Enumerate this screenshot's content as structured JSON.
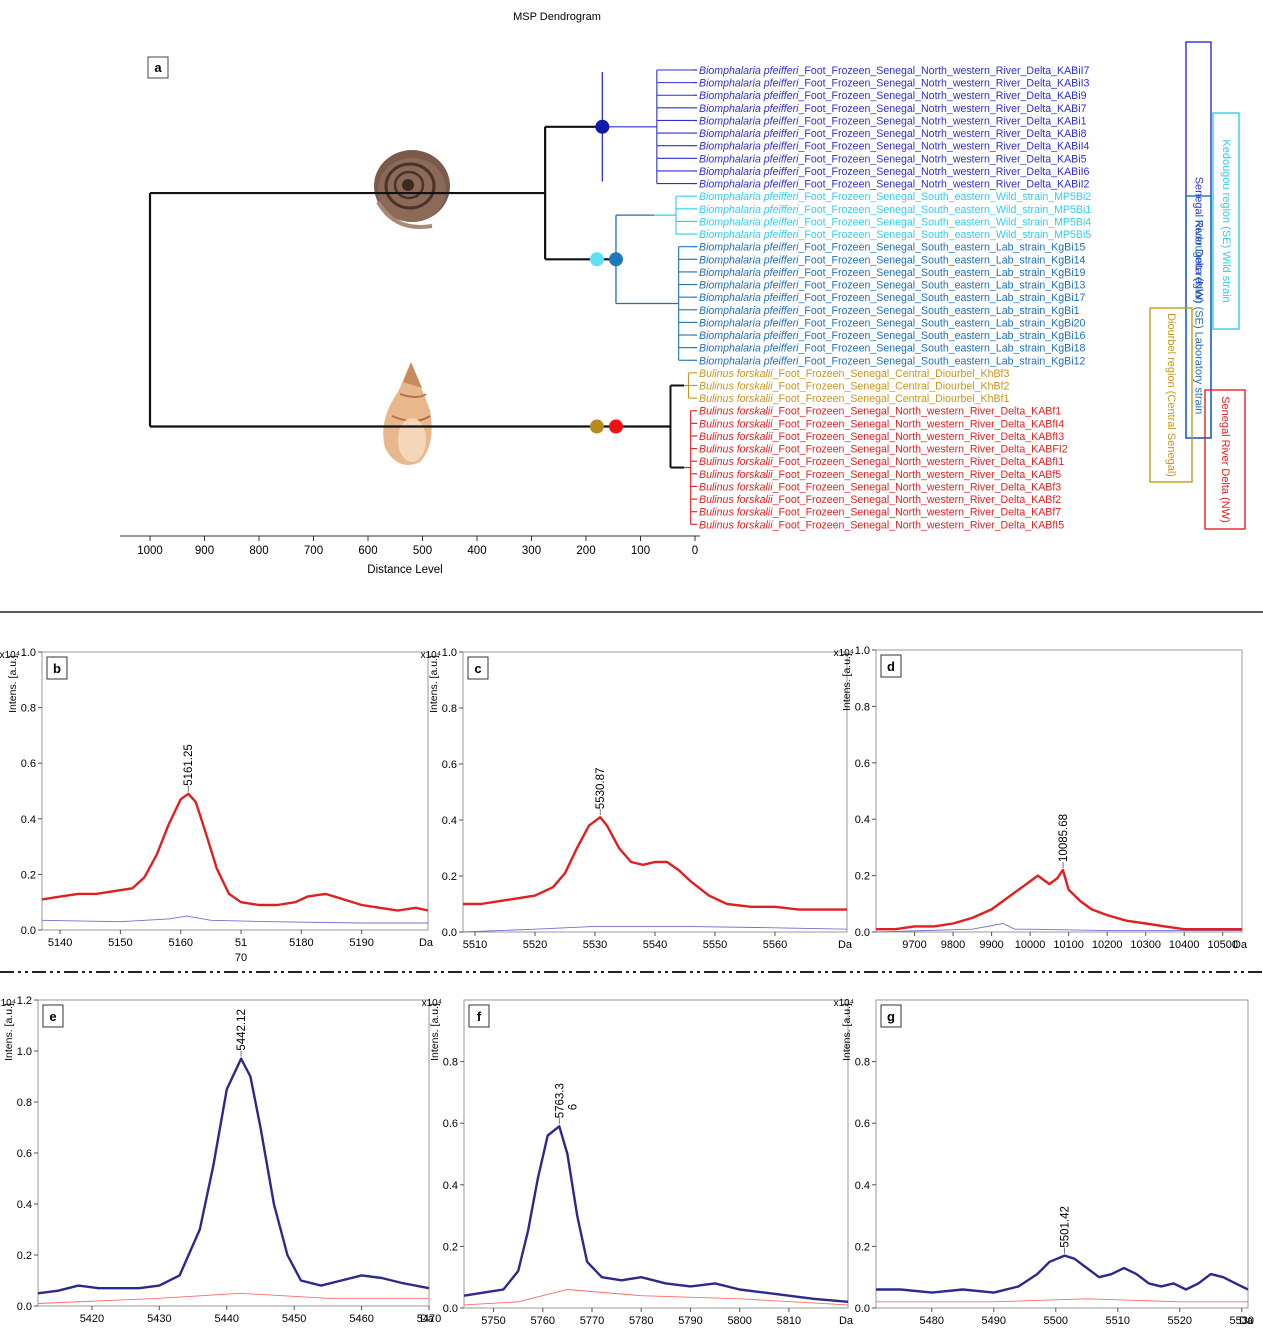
{
  "figure": {
    "colors": {
      "snail_a": "#2f2fd0",
      "snail_b_wild": "#33ccee",
      "snail_b_lab": "#1f6fb8",
      "bulinus_central": "#c8961e",
      "bulinus_nw": "#e32222",
      "node_a": "#101ca8",
      "node_wild": "#5fe0f5",
      "node_lab": "#1f78b8",
      "node_central": "#b88a1c",
      "node_nw": "#ee1111",
      "trace_red": "#e02020",
      "trace_blue": "#2b2a8c",
      "thin_blue": "#7070d0",
      "thin_red": "#ff6a6a"
    }
  },
  "chart_data": [
    {
      "type": "dendrogram",
      "title": "MSP Dendrogram",
      "panel_label": "a",
      "xlabel": "Distance Level",
      "xlim": [
        1000,
        0
      ],
      "ticks": [
        1000,
        900,
        800,
        700,
        600,
        500,
        400,
        300,
        200,
        100,
        0
      ],
      "leaves": [
        {
          "genus": "Biomphalaria pfeifferi",
          "rest": "_Foot_Frozeen_Senegal_North_western_River_Delta_KABiI7",
          "group": "snail_a"
        },
        {
          "genus": "Biomphalaria pfeifferi",
          "rest": "_Foot_Frozeen_Senegal_Notrh_western_River_Delta_KABiI3",
          "group": "snail_a"
        },
        {
          "genus": "Biomphalaria pfeifferi",
          "rest": "_Foot_Frozeen_Senegal_Notrh_western_River_Delta_KABi9",
          "group": "snail_a"
        },
        {
          "genus": "Biomphalaria pfeifferi",
          "rest": "_Foot_Frozeen_Senegal_Notrh_western_River_Delta_KABi7",
          "group": "snail_a"
        },
        {
          "genus": "Biomphalaria pfeifferi",
          "rest": "_Foot_Frozeen_Senegal_Notrh_western_River_Delta_KABi1",
          "group": "snail_a"
        },
        {
          "genus": "Biomphalaria pfeifferi",
          "rest": "_Foot_Frozeen_Senegal_Notrh_western_River_Delta_KABi8",
          "group": "snail_a"
        },
        {
          "genus": "Biomphalaria pfeifferi",
          "rest": "_Foot_Frozeen_Senegal_Notrh_western_River_Delta_KABiI4",
          "group": "snail_a"
        },
        {
          "genus": "Biomphalaria pfeifferi",
          "rest": "_Foot_Frozeen_Senegal_Notrh_western_River_Delta_KABi5",
          "group": "snail_a"
        },
        {
          "genus": "Biomphalaria pfeifferi",
          "rest": "_Foot_Frozeen_Senegal_Notrh_western_River_Delta_KABiI6",
          "group": "snail_a"
        },
        {
          "genus": "Biomphalaria pfeifferi",
          "rest": "_Foot_Frozeen_Senegal_Notrh_western_River_Delta_KABiI2",
          "group": "snail_a"
        },
        {
          "genus": "Biomphalaria pfeifferi",
          "rest": "_Foot_Frozeen_Senegal_South_eastern_Wild_strain_MP5Bi2",
          "group": "snail_b_wild"
        },
        {
          "genus": "Biomphalaria pfeifferi",
          "rest": "_Foot_Frozeen_Senegal_South_eastern_Wild_strain_MP5Bi1",
          "group": "snail_b_wild"
        },
        {
          "genus": "Biomphalaria pfeifferi",
          "rest": "_Foot_Frozeen_Senegal_South_eastern_Wild_strain_MP5Bi4",
          "group": "snail_b_wild"
        },
        {
          "genus": "Biomphalaria pfeifferi",
          "rest": "_Foot_Frozeen_Senegal_South_eastern_Wild_strain_MP5Bi5",
          "group": "snail_b_wild"
        },
        {
          "genus": "Biomphalaria pfeifferi",
          "rest": "_Foot_Frozeen_Senegal_South_eastern_Lab_strain_KgBi15",
          "group": "snail_b_lab"
        },
        {
          "genus": "Biomphalaria pfeifferi",
          "rest": "_Foot_Frozeen_Senegal_South_eastern_Lab_strain_KgBi14",
          "group": "snail_b_lab"
        },
        {
          "genus": "Biomphalaria pfeifferi",
          "rest": "_Foot_Frozeen_Senegal_South_eastern_Lab_strain_KgBi19",
          "group": "snail_b_lab"
        },
        {
          "genus": "Biomphalaria pfeifferi",
          "rest": "_Foot_Frozeen_Senegal_South_eastern_Lab_strain_KgBi13",
          "group": "snail_b_lab"
        },
        {
          "genus": "Biomphalaria pfeifferi",
          "rest": "_Foot_Frozeen_Senegal_South_eastern_Lab_strain_KgBi17",
          "group": "snail_b_lab"
        },
        {
          "genus": "Biomphalaria pfeifferi",
          "rest": "_Foot_Frozeen_Senegal_South_eastern_Lab_strain_KgBi1",
          "group": "snail_b_lab"
        },
        {
          "genus": "Biomphalaria pfeifferi",
          "rest": "_Foot_Frozeen_Senegal_South_eastern_Lab_strain_KgBi20",
          "group": "snail_b_lab"
        },
        {
          "genus": "Biomphalaria pfeifferi",
          "rest": "_Foot_Frozeen_Senegal_South_eastern_Lab_strain_KgBi16",
          "group": "snail_b_lab"
        },
        {
          "genus": "Biomphalaria pfeifferi",
          "rest": "_Foot_Frozeen_Senegal_South_eastern_Lab_strain_KgBi18",
          "group": "snail_b_lab"
        },
        {
          "genus": "Biomphalaria pfeifferi",
          "rest": "_Foot_Frozeen_Senegal_South_eastern_Lab_strain_KgBi12",
          "group": "snail_b_lab"
        },
        {
          "genus": "Bulinus forskalii",
          "rest": "_Foot_Frozeen_Senegal_Central_Diourbel_KhBf3",
          "group": "bulinus_central"
        },
        {
          "genus": "Bulinus forskalii",
          "rest": "_Foot_Frozeen_Senegal_Central_Diourbel_KhBf2",
          "group": "bulinus_central"
        },
        {
          "genus": "Bulinus forskalii",
          "rest": "_Foot_Frozeen_Senegal_Central_Diourbel_KhBf1",
          "group": "bulinus_central"
        },
        {
          "genus": "Bulinus forskalii",
          "rest": "_Foot_Frozeen_Senegal_North_western_River_Delta_KABf1",
          "group": "bulinus_nw"
        },
        {
          "genus": "Bulinus forskalii",
          "rest": "_Foot_Frozeen_Senegal_North_western_River_Delta_KABfI4",
          "group": "bulinus_nw"
        },
        {
          "genus": "Bulinus forskalii",
          "rest": "_Foot_Frozeen_Senegal_North_western_River_Delta_KABfI3",
          "group": "bulinus_nw"
        },
        {
          "genus": "Bulinus forskalii",
          "rest": "_Foot_Frozeen_Senegal_North_western_River_Delta_KABFI2",
          "group": "bulinus_nw"
        },
        {
          "genus": "Bulinus forskalii",
          "rest": "_Foot_Frozeen_Senegal_North_western_River_Delta_KABfI1",
          "group": "bulinus_nw"
        },
        {
          "genus": "Bulinus forskalii",
          "rest": "_Foot_Frozeen_Senegal_North_western_River_Delta_KABf5",
          "group": "bulinus_nw"
        },
        {
          "genus": "Bulinus forskalii",
          "rest": "_Foot_Frozeen_Senegal_North_western_River_Delta_KABf3",
          "group": "bulinus_nw"
        },
        {
          "genus": "Bulinus forskalii",
          "rest": "_Foot_Frozeen_Senegal_North_western_River_Delta_KABf2",
          "group": "bulinus_nw"
        },
        {
          "genus": "Bulinus forskalii",
          "rest": "_Foot_Frozeen_Senegal_North_western_River_Delta_KABf7",
          "group": "bulinus_nw"
        },
        {
          "genus": "Bulinus forskalii",
          "rest": "_Foot_Frozeen_Senegal_North_western_River_Delta_KABfI5",
          "group": "bulinus_nw"
        }
      ],
      "region_labels": [
        {
          "text": "Senegal River Delta (NW)",
          "color": "#2f2fd0"
        },
        {
          "text": "Kedougou region (SE) Wild strain",
          "color": "#33ccee"
        },
        {
          "text": "Kedougou region (SE) Laboratory strain",
          "color": "#1f6fb8"
        },
        {
          "text": "Diourbel region (Central Senegal)",
          "color": "#c8961e"
        },
        {
          "text": "Senegal River Delta (NW)",
          "color": "#e32222"
        }
      ]
    },
    {
      "type": "line",
      "panel_label": "b",
      "ylabel": "Intens. [a.u.]",
      "exponent": "x10⁴",
      "ylim": [
        0,
        1.0
      ],
      "yticks": [
        "0.0",
        "0.2",
        "0.4",
        "0.6",
        "0.8",
        "1.0"
      ],
      "xlim": [
        5137,
        5201
      ],
      "xticks": [
        "5140",
        "5150",
        "5160",
        "51",
        "5180",
        "5190"
      ],
      "xtick_values": [
        5140,
        5150,
        5160,
        5170,
        5180,
        5190
      ],
      "xtick_extra": "70",
      "xunit": "Da",
      "peak_label": "5161.25",
      "peak_x": 5161.25,
      "peak_y": 0.49,
      "main_series": {
        "color": "red",
        "x": [
          5137,
          5140,
          5143,
          5146,
          5149,
          5152,
          5154,
          5156,
          5158,
          5160,
          5161.25,
          5162.5,
          5164,
          5166,
          5168,
          5170,
          5173,
          5176,
          5179,
          5181,
          5184,
          5187,
          5190,
          5193,
          5196,
          5199,
          5201
        ],
        "y": [
          0.11,
          0.12,
          0.13,
          0.13,
          0.14,
          0.15,
          0.19,
          0.27,
          0.38,
          0.47,
          0.49,
          0.46,
          0.36,
          0.22,
          0.13,
          0.1,
          0.09,
          0.09,
          0.1,
          0.12,
          0.13,
          0.11,
          0.09,
          0.08,
          0.07,
          0.08,
          0.07
        ]
      },
      "sub_series": {
        "color": "thin_blue",
        "x": [
          5137,
          5150,
          5158,
          5161,
          5165,
          5175,
          5190,
          5201
        ],
        "y": [
          0.035,
          0.03,
          0.04,
          0.05,
          0.035,
          0.03,
          0.025,
          0.025
        ]
      }
    },
    {
      "type": "line",
      "panel_label": "c",
      "ylabel": "Intens. [a.u.]",
      "exponent": "x10⁴",
      "ylim": [
        0,
        1.0
      ],
      "yticks": [
        "0.0",
        "0.2",
        "0.4",
        "0.6",
        "0.8",
        "1.0"
      ],
      "xlim": [
        5508,
        5572
      ],
      "xticks": [
        "5510",
        "5520",
        "5530",
        "5540",
        "5550",
        "5560"
      ],
      "xtick_values": [
        5510,
        5520,
        5530,
        5540,
        5550,
        5560
      ],
      "xunit": "Da",
      "peak_label": "5530.87",
      "peak_x": 5530.87,
      "peak_y": 0.41,
      "main_series": {
        "color": "red",
        "x": [
          5508,
          5511,
          5514,
          5517,
          5520,
          5523,
          5525,
          5527,
          5529,
          5530.87,
          5532,
          5534,
          5536,
          5538,
          5540,
          5542,
          5544,
          5546,
          5549,
          5552,
          5556,
          5560,
          5564,
          5568,
          5572
        ],
        "y": [
          0.1,
          0.1,
          0.11,
          0.12,
          0.13,
          0.16,
          0.21,
          0.3,
          0.38,
          0.41,
          0.38,
          0.3,
          0.25,
          0.24,
          0.25,
          0.25,
          0.22,
          0.18,
          0.13,
          0.1,
          0.09,
          0.09,
          0.08,
          0.08,
          0.08
        ]
      },
      "sub_series": {
        "color": "thin_blue",
        "x": [
          5508,
          5520,
          5530,
          5545,
          5560,
          5572
        ],
        "y": [
          0.0,
          0.01,
          0.02,
          0.02,
          0.015,
          0.01
        ]
      }
    },
    {
      "type": "line",
      "panel_label": "d",
      "ylabel": "Intens. [a.u.]",
      "exponent": "x10⁴",
      "ylim": [
        0,
        1.0
      ],
      "yticks": [
        "0.0",
        "0.2",
        "0.4",
        "0.6",
        "0.8",
        "1.0"
      ],
      "xlim": [
        9600,
        10550
      ],
      "xticks": [
        "9700",
        "9800",
        "9900",
        "10000",
        "10100",
        "10200",
        "10300",
        "10400",
        "10500"
      ],
      "xtick_values": [
        9700,
        9800,
        9900,
        10000,
        10100,
        10200,
        10300,
        10400,
        10500
      ],
      "xunit": "Da",
      "peak_label": "10085.68",
      "peak_x": 10085.68,
      "peak_y": 0.22,
      "main_series": {
        "color": "red",
        "x": [
          9600,
          9650,
          9700,
          9750,
          9800,
          9850,
          9900,
          9930,
          9960,
          9990,
          10020,
          10050,
          10070,
          10085,
          10100,
          10130,
          10160,
          10200,
          10250,
          10300,
          10350,
          10400,
          10450,
          10500,
          10550
        ],
        "y": [
          0.01,
          0.01,
          0.02,
          0.02,
          0.03,
          0.05,
          0.08,
          0.11,
          0.14,
          0.17,
          0.2,
          0.17,
          0.19,
          0.22,
          0.15,
          0.11,
          0.08,
          0.06,
          0.04,
          0.03,
          0.02,
          0.01,
          0.01,
          0.01,
          0.01
        ]
      },
      "sub_series": {
        "color": "thin_blue",
        "x": [
          9600,
          9850,
          9930,
          9960,
          10000,
          10200,
          10550
        ],
        "y": [
          0.0,
          0.01,
          0.03,
          0.01,
          0.01,
          0.005,
          0.005
        ]
      }
    },
    {
      "type": "line",
      "panel_label": "e",
      "ylabel": "Intens. [a.u.]",
      "exponent": "x10⁴",
      "ylim": [
        0,
        1.2
      ],
      "yticks": [
        "0.0",
        "0.2",
        "0.4",
        "0.6",
        "0.8",
        "1.0",
        "1.2"
      ],
      "xlim": [
        5412,
        5470
      ],
      "xticks": [
        "5420",
        "5430",
        "5440",
        "5450",
        "5460",
        "5470"
      ],
      "xtick_values": [
        5420,
        5430,
        5440,
        5450,
        5460,
        5470
      ],
      "xunit": "Da",
      "peak_label": "5442.12",
      "peak_x": 5442.12,
      "peak_y": 0.97,
      "main_series": {
        "color": "blue",
        "x": [
          5412,
          5415,
          5418,
          5421,
          5424,
          5427,
          5430,
          5433,
          5436,
          5438,
          5440,
          5442.12,
          5443.5,
          5445,
          5447,
          5449,
          5451,
          5454,
          5457,
          5460,
          5463,
          5466,
          5470
        ],
        "y": [
          0.05,
          0.06,
          0.08,
          0.07,
          0.07,
          0.07,
          0.08,
          0.12,
          0.3,
          0.55,
          0.85,
          0.97,
          0.9,
          0.7,
          0.4,
          0.2,
          0.1,
          0.08,
          0.1,
          0.12,
          0.11,
          0.09,
          0.07
        ]
      },
      "sub_series": {
        "color": "thin_red",
        "x": [
          5412,
          5430,
          5442,
          5455,
          5470
        ],
        "y": [
          0.01,
          0.03,
          0.05,
          0.03,
          0.03
        ]
      }
    },
    {
      "type": "line",
      "panel_label": "f",
      "ylabel": "Intens. [a.u.]",
      "exponent": "x10⁴",
      "ylim": [
        0,
        1.0
      ],
      "yticks": [
        "0.0",
        "0.2",
        "0.4",
        "0.6",
        "0.8"
      ],
      "xlim": [
        5744,
        5822
      ],
      "xticks": [
        "5750",
        "5760",
        "5770",
        "5780",
        "5790",
        "5800",
        "5810"
      ],
      "xtick_values": [
        5750,
        5760,
        5770,
        5780,
        5790,
        5800,
        5810
      ],
      "xunit": "Da",
      "peak_label": "5763.3",
      "peak_label2": "6",
      "peak_x": 5763.36,
      "peak_y": 0.59,
      "main_series": {
        "color": "blue",
        "x": [
          5744,
          5748,
          5752,
          5755,
          5757,
          5759,
          5761,
          5763.36,
          5765,
          5767,
          5769,
          5772,
          5776,
          5780,
          5785,
          5790,
          5795,
          5800,
          5805,
          5810,
          5815,
          5822
        ],
        "y": [
          0.04,
          0.05,
          0.06,
          0.12,
          0.25,
          0.42,
          0.56,
          0.59,
          0.5,
          0.3,
          0.15,
          0.1,
          0.09,
          0.1,
          0.08,
          0.07,
          0.08,
          0.06,
          0.05,
          0.04,
          0.03,
          0.02
        ]
      },
      "sub_series": {
        "color": "thin_red",
        "x": [
          5744,
          5755,
          5765,
          5780,
          5800,
          5822
        ],
        "y": [
          0.01,
          0.02,
          0.06,
          0.04,
          0.03,
          0.01
        ]
      }
    },
    {
      "type": "line",
      "panel_label": "g",
      "ylabel": "Intens. [a.u.]",
      "exponent": "x10⁴",
      "ylim": [
        0,
        1.0
      ],
      "yticks": [
        "0.0",
        "0.2",
        "0.4",
        "0.6",
        "0.8"
      ],
      "xlim": [
        5471,
        5531
      ],
      "xticks": [
        "5480",
        "5490",
        "5500",
        "5510",
        "5520",
        "5530"
      ],
      "xtick_values": [
        5480,
        5490,
        5500,
        5510,
        5520,
        5530
      ],
      "xunit": "Da",
      "peak_label": "5501.42",
      "peak_x": 5501.42,
      "peak_y": 0.17,
      "main_series": {
        "color": "blue",
        "x": [
          5471,
          5475,
          5480,
          5485,
          5490,
          5494,
          5497,
          5499,
          5501.42,
          5503,
          5505,
          5507,
          5509,
          5511,
          5513,
          5515,
          5517,
          5519,
          5521,
          5523,
          5525,
          5527,
          5529,
          5531
        ],
        "y": [
          0.06,
          0.06,
          0.05,
          0.06,
          0.05,
          0.07,
          0.11,
          0.15,
          0.17,
          0.16,
          0.13,
          0.1,
          0.11,
          0.13,
          0.11,
          0.08,
          0.07,
          0.08,
          0.06,
          0.08,
          0.11,
          0.1,
          0.08,
          0.06
        ]
      },
      "sub_series": {
        "color": "thin_red",
        "x": [
          5471,
          5490,
          5505,
          5520,
          5531
        ],
        "y": [
          0.02,
          0.02,
          0.03,
          0.02,
          0.02
        ]
      }
    }
  ]
}
